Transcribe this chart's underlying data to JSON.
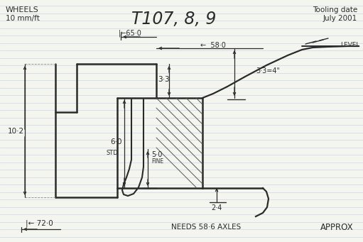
{
  "title": "T107, 8, 9",
  "top_left_line1": "WHEELS",
  "top_left_line2": "10 mm/ft",
  "top_right_line1": "Tooling date",
  "top_right_line2": "July 2001",
  "bottom_center": "NEEDS 58.6 AXLES",
  "bottom_right": "APPROX",
  "bg_color": "#f5f5f0",
  "line_color": "#2a2a2a",
  "notebook_line_color": "#c8d8e8"
}
